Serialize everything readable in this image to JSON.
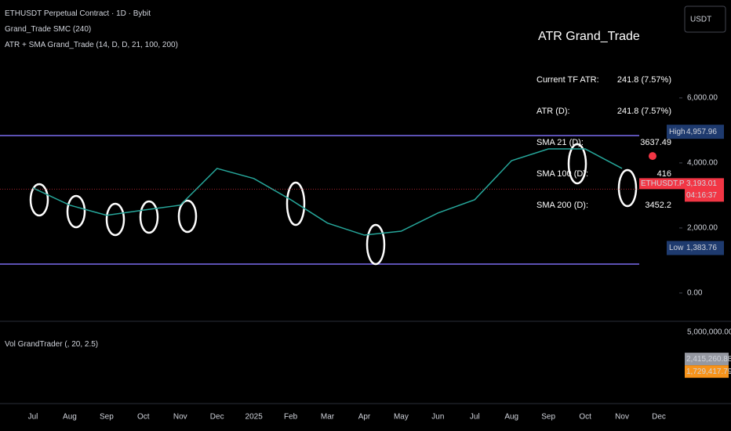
{
  "header": {
    "symbol": "ETHUSDT Perpetual Contract · 1D · Bybit",
    "indicator1": "Grand_Trade SMC (240)",
    "indicator2": "ATR + SMA Grand_Trade (14, D, D, 21, 100, 200)"
  },
  "currency_button": "USDT",
  "atr_table": {
    "title": "ATR Grand_Trade",
    "rows": [
      [
        "Current TF ATR:",
        "241.8 (7.57%)"
      ],
      [
        "ATR (D):",
        "241.8 (7.57%)"
      ],
      [
        "SMA 21 (D):",
        "3637.49"
      ],
      [
        "SMA 100 (D):",
        "416"
      ],
      [
        "SMA 200 (D):",
        "3452.2"
      ]
    ]
  },
  "chart_data": {
    "type": "line",
    "categories": [
      "Jul",
      "Aug",
      "Sep",
      "Oct",
      "Nov",
      "Dec",
      "2025",
      "Feb",
      "Mar",
      "Apr",
      "May",
      "Jun",
      "Jul",
      "Aug",
      "Sep",
      "Oct",
      "Nov",
      "Dec"
    ],
    "series": [
      {
        "name": "ETHUSDT.P",
        "color": "#26a69a",
        "values": [
          3230,
          2700,
          2390,
          2550,
          2700,
          3830,
          3520,
          2870,
          2150,
          1780,
          1900,
          2460,
          2870,
          4070,
          4430,
          4430,
          3830,
          null
        ]
      }
    ],
    "ylim": [
      -870,
      9010
    ],
    "yticks": [
      {
        "value": 0,
        "label": "0.00"
      },
      {
        "value": 2000,
        "label": "2,000.00"
      },
      {
        "value": 4000,
        "label": "4,000.00"
      },
      {
        "value": 6000,
        "label": "6,000.00"
      }
    ],
    "high": {
      "label": "High",
      "value": 4957.96,
      "value_label": "4,957.96"
    },
    "low": {
      "label": "Low",
      "value": 1383.76,
      "value_label": "1,383.76"
    },
    "last": {
      "label": "ETHUSDT.P",
      "value": 3193.01,
      "value_label": "3,193.01",
      "countdown": "04:16:37"
    }
  },
  "volume": {
    "title": "Vol GrandTrader (, 20, 2.5)",
    "ylim": [
      0,
      5000000
    ],
    "yticks": [
      {
        "value": 5000000,
        "label": "5,000,000.00"
      }
    ],
    "last": {
      "value": 2415260.88,
      "value_label": "2,415,260.88"
    },
    "ma": {
      "value": 1729417.79,
      "value_label": "1,729,417.79"
    }
  }
}
